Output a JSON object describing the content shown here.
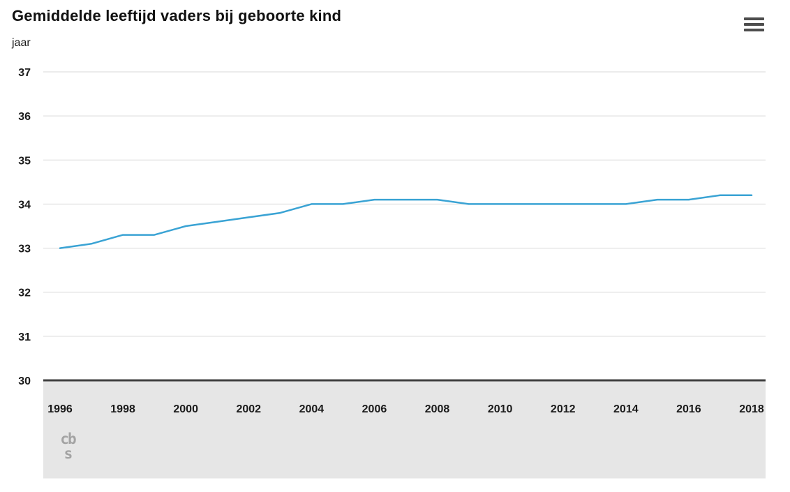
{
  "header": {
    "menu_icon": "hamburger-menu-icon"
  },
  "footer": {
    "logo_line1": "cb",
    "logo_line2": "s"
  },
  "chart_data": {
    "type": "line",
    "title": "Gemiddelde leeftijd vaders bij geboorte kind",
    "ylabel": "jaar",
    "xlabel": "",
    "x": [
      1996,
      1997,
      1998,
      1999,
      2000,
      2001,
      2002,
      2003,
      2004,
      2005,
      2006,
      2007,
      2008,
      2009,
      2010,
      2011,
      2012,
      2013,
      2014,
      2015,
      2016,
      2017,
      2018
    ],
    "series": [
      {
        "name": "Gemiddelde leeftijd vaders bij geboorte kind",
        "values": [
          33.0,
          33.1,
          33.3,
          33.3,
          33.5,
          33.6,
          33.7,
          33.8,
          34.0,
          34.0,
          34.1,
          34.1,
          34.1,
          34.0,
          34.0,
          34.0,
          34.0,
          34.0,
          34.0,
          34.1,
          34.1,
          34.2,
          34.2
        ]
      }
    ],
    "ylim": [
      30,
      37
    ],
    "yticks": [
      30,
      31,
      32,
      33,
      34,
      35,
      36,
      37
    ],
    "xticks": [
      1996,
      1998,
      2000,
      2002,
      2004,
      2006,
      2008,
      2010,
      2012,
      2014,
      2016,
      2018
    ],
    "grid": true,
    "legend_position": "none",
    "colors": {
      "line": "#3aa3d4",
      "grid": "#d9d9d9",
      "axis": "#404040",
      "band": "#e6e6e6",
      "text": "#1a1a1a"
    }
  }
}
